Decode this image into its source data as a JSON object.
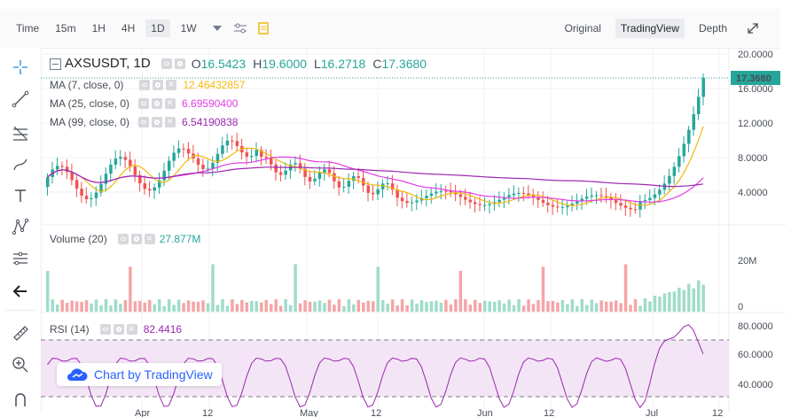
{
  "topbar": {
    "time_label": "Time",
    "timeframes": [
      "15m",
      "1H",
      "4H",
      "1D",
      "1W"
    ],
    "active_timeframe": "1D",
    "views": [
      "Original",
      "TradingView",
      "Depth"
    ],
    "active_view": "TradingView"
  },
  "symbol": {
    "name": "AXSUSDT, 1D",
    "o_label": "O",
    "o": "16.5423",
    "h_label": "H",
    "h": "19.6000",
    "l_label": "L",
    "l": "16.2718",
    "c_label": "C",
    "c": "17.3680"
  },
  "indicators": {
    "ma7_label": "MA (7, close, 0)",
    "ma7_value": "12.46432857",
    "ma25_label": "MA (25, close, 0)",
    "ma25_value": "6.69590400",
    "ma99_label": "MA (99, close, 0)",
    "ma99_value": "6.54190838",
    "volume_label": "Volume (20)",
    "volume_value": "27.877M",
    "rsi_label": "RSI (14)",
    "rsi_value": "82.4416"
  },
  "price_axis": [
    "20.0000",
    "16.0000",
    "12.0000",
    "8.0000",
    "4.0000"
  ],
  "last_price": "17.3680",
  "volume_axis": [
    "20M",
    "0"
  ],
  "rsi_axis": [
    "80.0000",
    "60.0000",
    "40.0000"
  ],
  "time_axis": [
    "Apr",
    "12",
    "May",
    "12",
    "Jun",
    "12",
    "Jul",
    "12"
  ],
  "watermark": "Chart by TradingView",
  "colors": {
    "up": "#26a69a",
    "down": "#ef5350",
    "ma7": "#f0b90b",
    "ma25": "#e23ce6",
    "ma99": "#9c27b0",
    "rsi": "#9c27b0"
  }
}
